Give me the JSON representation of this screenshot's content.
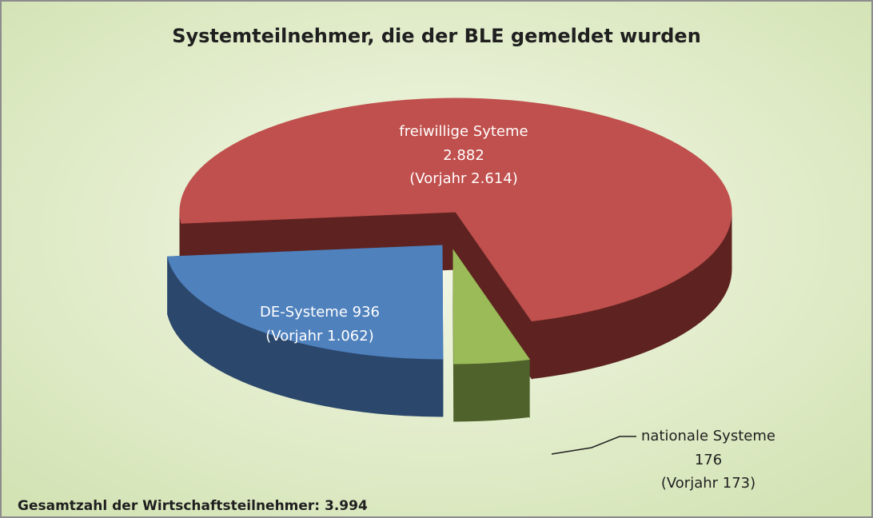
{
  "chart_data": {
    "type": "pie",
    "title": "Systemteilnehmer, die der BLE gemeldet wurden",
    "categories": [
      "freiwillige Syteme",
      "DE-Systeme",
      "nationale Systeme"
    ],
    "values": [
      2882,
      936,
      176
    ],
    "value_labels": [
      "2.882",
      "936",
      "176"
    ],
    "previous_labels": [
      "(Vorjahr 2.614)",
      "(Vorjahr 1.062)",
      "(Vorjahr 173)"
    ],
    "colors": [
      "#c0504d",
      "#4f81bd",
      "#9bbb59"
    ],
    "side_colors": [
      "#5e2321",
      "#2b476b",
      "#4f622b"
    ],
    "note": "Gesamtzahl der Wirtschaftsteilnehmer:  3.994"
  }
}
